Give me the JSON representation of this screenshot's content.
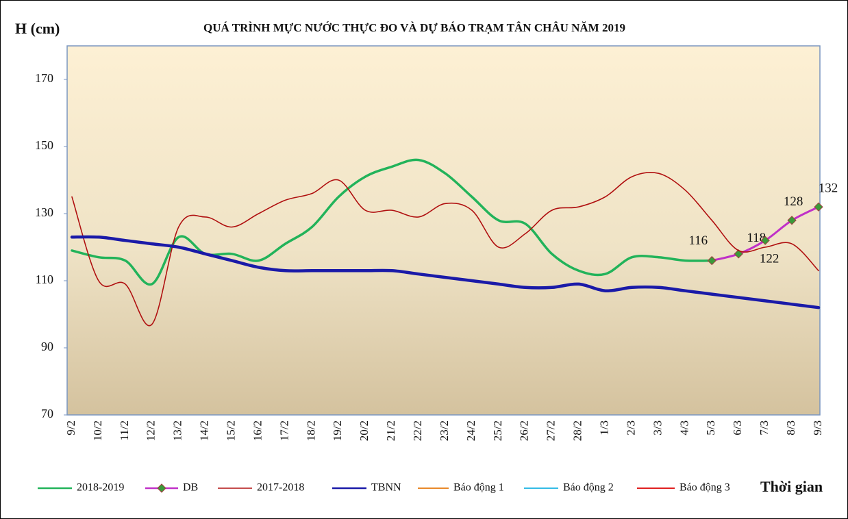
{
  "chart_data": {
    "type": "line",
    "title": "QUÁ TRÌNH MỰC NƯỚC THỰC ĐO VÀ DỰ BÁO TRẠM TÂN CHÂU NĂM 2019",
    "y_label": "H (cm)",
    "x_label": "Thời gian",
    "categories": [
      "9/2",
      "10/2",
      "11/2",
      "12/2",
      "13/2",
      "14/2",
      "15/2",
      "16/2",
      "17/2",
      "18/2",
      "19/2",
      "20/2",
      "21/2",
      "22/2",
      "23/2",
      "24/2",
      "25/2",
      "26/2",
      "27/2",
      "28/2",
      "1/3",
      "2/3",
      "3/3",
      "4/3",
      "5/3",
      "6/3",
      "7/3",
      "8/3",
      "9/3"
    ],
    "ylim": [
      70,
      180
    ],
    "yticks": [
      70,
      90,
      110,
      130,
      150,
      170
    ],
    "series": [
      {
        "name": "2018-2019",
        "color": "#22b35a",
        "values": [
          119,
          117,
          116,
          109,
          123,
          118,
          118,
          116,
          121,
          126,
          135,
          141,
          144,
          146,
          142,
          135,
          128,
          127,
          118,
          113,
          112,
          117,
          117,
          116,
          116,
          null,
          null,
          null,
          null
        ]
      },
      {
        "name": "DB",
        "color": "#c030c8",
        "marker": "#3a9a3a",
        "values": [
          null,
          null,
          null,
          null,
          null,
          null,
          null,
          null,
          null,
          null,
          null,
          null,
          null,
          null,
          null,
          null,
          null,
          null,
          null,
          null,
          null,
          null,
          null,
          null,
          116,
          118,
          122,
          128,
          132
        ],
        "data_labels": true
      },
      {
        "name": "2017-2018",
        "color": "#b01010",
        "values": [
          135,
          110,
          109,
          97,
          126,
          129,
          126,
          130,
          134,
          136,
          140,
          131,
          131,
          129,
          133,
          131,
          120,
          124,
          131,
          132,
          135,
          141,
          142,
          137,
          128,
          119,
          120,
          121,
          113
        ]
      },
      {
        "name": "TBNN",
        "color": "#1a1aa8",
        "values": [
          123,
          123,
          122,
          121,
          120,
          118,
          116,
          114,
          113,
          113,
          113,
          113,
          113,
          112,
          111,
          110,
          109,
          108,
          108,
          109,
          107,
          108,
          108,
          107,
          106,
          105,
          104,
          103,
          102
        ]
      },
      {
        "name": "Báo động 1",
        "color": "#e8892a",
        "values": [
          null,
          null,
          null,
          null,
          null,
          null,
          null,
          null,
          null,
          null,
          null,
          null,
          null,
          null,
          null,
          null,
          null,
          null,
          null,
          null,
          null,
          null,
          null,
          null,
          null,
          null,
          null,
          null,
          null
        ]
      },
      {
        "name": "Báo động 2",
        "color": "#33bbe6",
        "values": [
          null,
          null,
          null,
          null,
          null,
          null,
          null,
          null,
          null,
          null,
          null,
          null,
          null,
          null,
          null,
          null,
          null,
          null,
          null,
          null,
          null,
          null,
          null,
          null,
          null,
          null,
          null,
          null,
          null
        ]
      },
      {
        "name": "Báo động 3",
        "color": "#e02020",
        "values": [
          null,
          null,
          null,
          null,
          null,
          null,
          null,
          null,
          null,
          null,
          null,
          null,
          null,
          null,
          null,
          null,
          null,
          null,
          null,
          null,
          null,
          null,
          null,
          null,
          null,
          null,
          null,
          null,
          null
        ]
      }
    ]
  }
}
